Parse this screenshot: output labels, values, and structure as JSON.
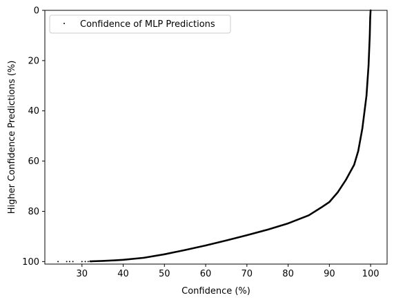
{
  "chart_data": {
    "type": "scatter",
    "title": "",
    "xlabel": "Confidence (%)",
    "ylabel": "Higher Confidence Predictions (%)",
    "xlim": [
      21,
      104
    ],
    "ylim": [
      101,
      0
    ],
    "y_inverted": true,
    "x_ticks": [
      30,
      40,
      50,
      60,
      70,
      80,
      90,
      100
    ],
    "y_ticks": [
      0,
      20,
      40,
      60,
      80,
      100
    ],
    "grid": false,
    "legend": {
      "position": "top-left",
      "entries": [
        "Confidence of MLP Predictions"
      ]
    },
    "series": [
      {
        "name": "Confidence of MLP Predictions",
        "color": "#000000",
        "marker": "dot",
        "points_sparse": [
          [
            24.2,
            100
          ],
          [
            26.3,
            100
          ],
          [
            27.0,
            100
          ],
          [
            27.8,
            100
          ],
          [
            30.0,
            100
          ],
          [
            30.8,
            100
          ],
          [
            31.5,
            100
          ],
          [
            32.3,
            100
          ]
        ],
        "curve": [
          [
            32.0,
            99.9
          ],
          [
            35.0,
            99.75
          ],
          [
            38.0,
            99.5
          ],
          [
            40.0,
            99.3
          ],
          [
            45.0,
            98.5
          ],
          [
            50.0,
            97.1
          ],
          [
            55.0,
            95.4
          ],
          [
            60.0,
            93.6
          ],
          [
            65.0,
            91.6
          ],
          [
            70.0,
            89.5
          ],
          [
            75.0,
            87.3
          ],
          [
            80.0,
            84.8
          ],
          [
            85.0,
            81.6
          ],
          [
            88.0,
            78.5
          ],
          [
            90.0,
            76.3
          ],
          [
            92.0,
            72.5
          ],
          [
            94.0,
            67.5
          ],
          [
            96.0,
            61.5
          ],
          [
            97.0,
            56.0
          ],
          [
            98.0,
            47.0
          ],
          [
            99.0,
            34.0
          ],
          [
            99.5,
            22.0
          ],
          [
            99.8,
            10.0
          ],
          [
            99.9,
            3.0
          ],
          [
            100.0,
            0.0
          ]
        ]
      }
    ]
  }
}
